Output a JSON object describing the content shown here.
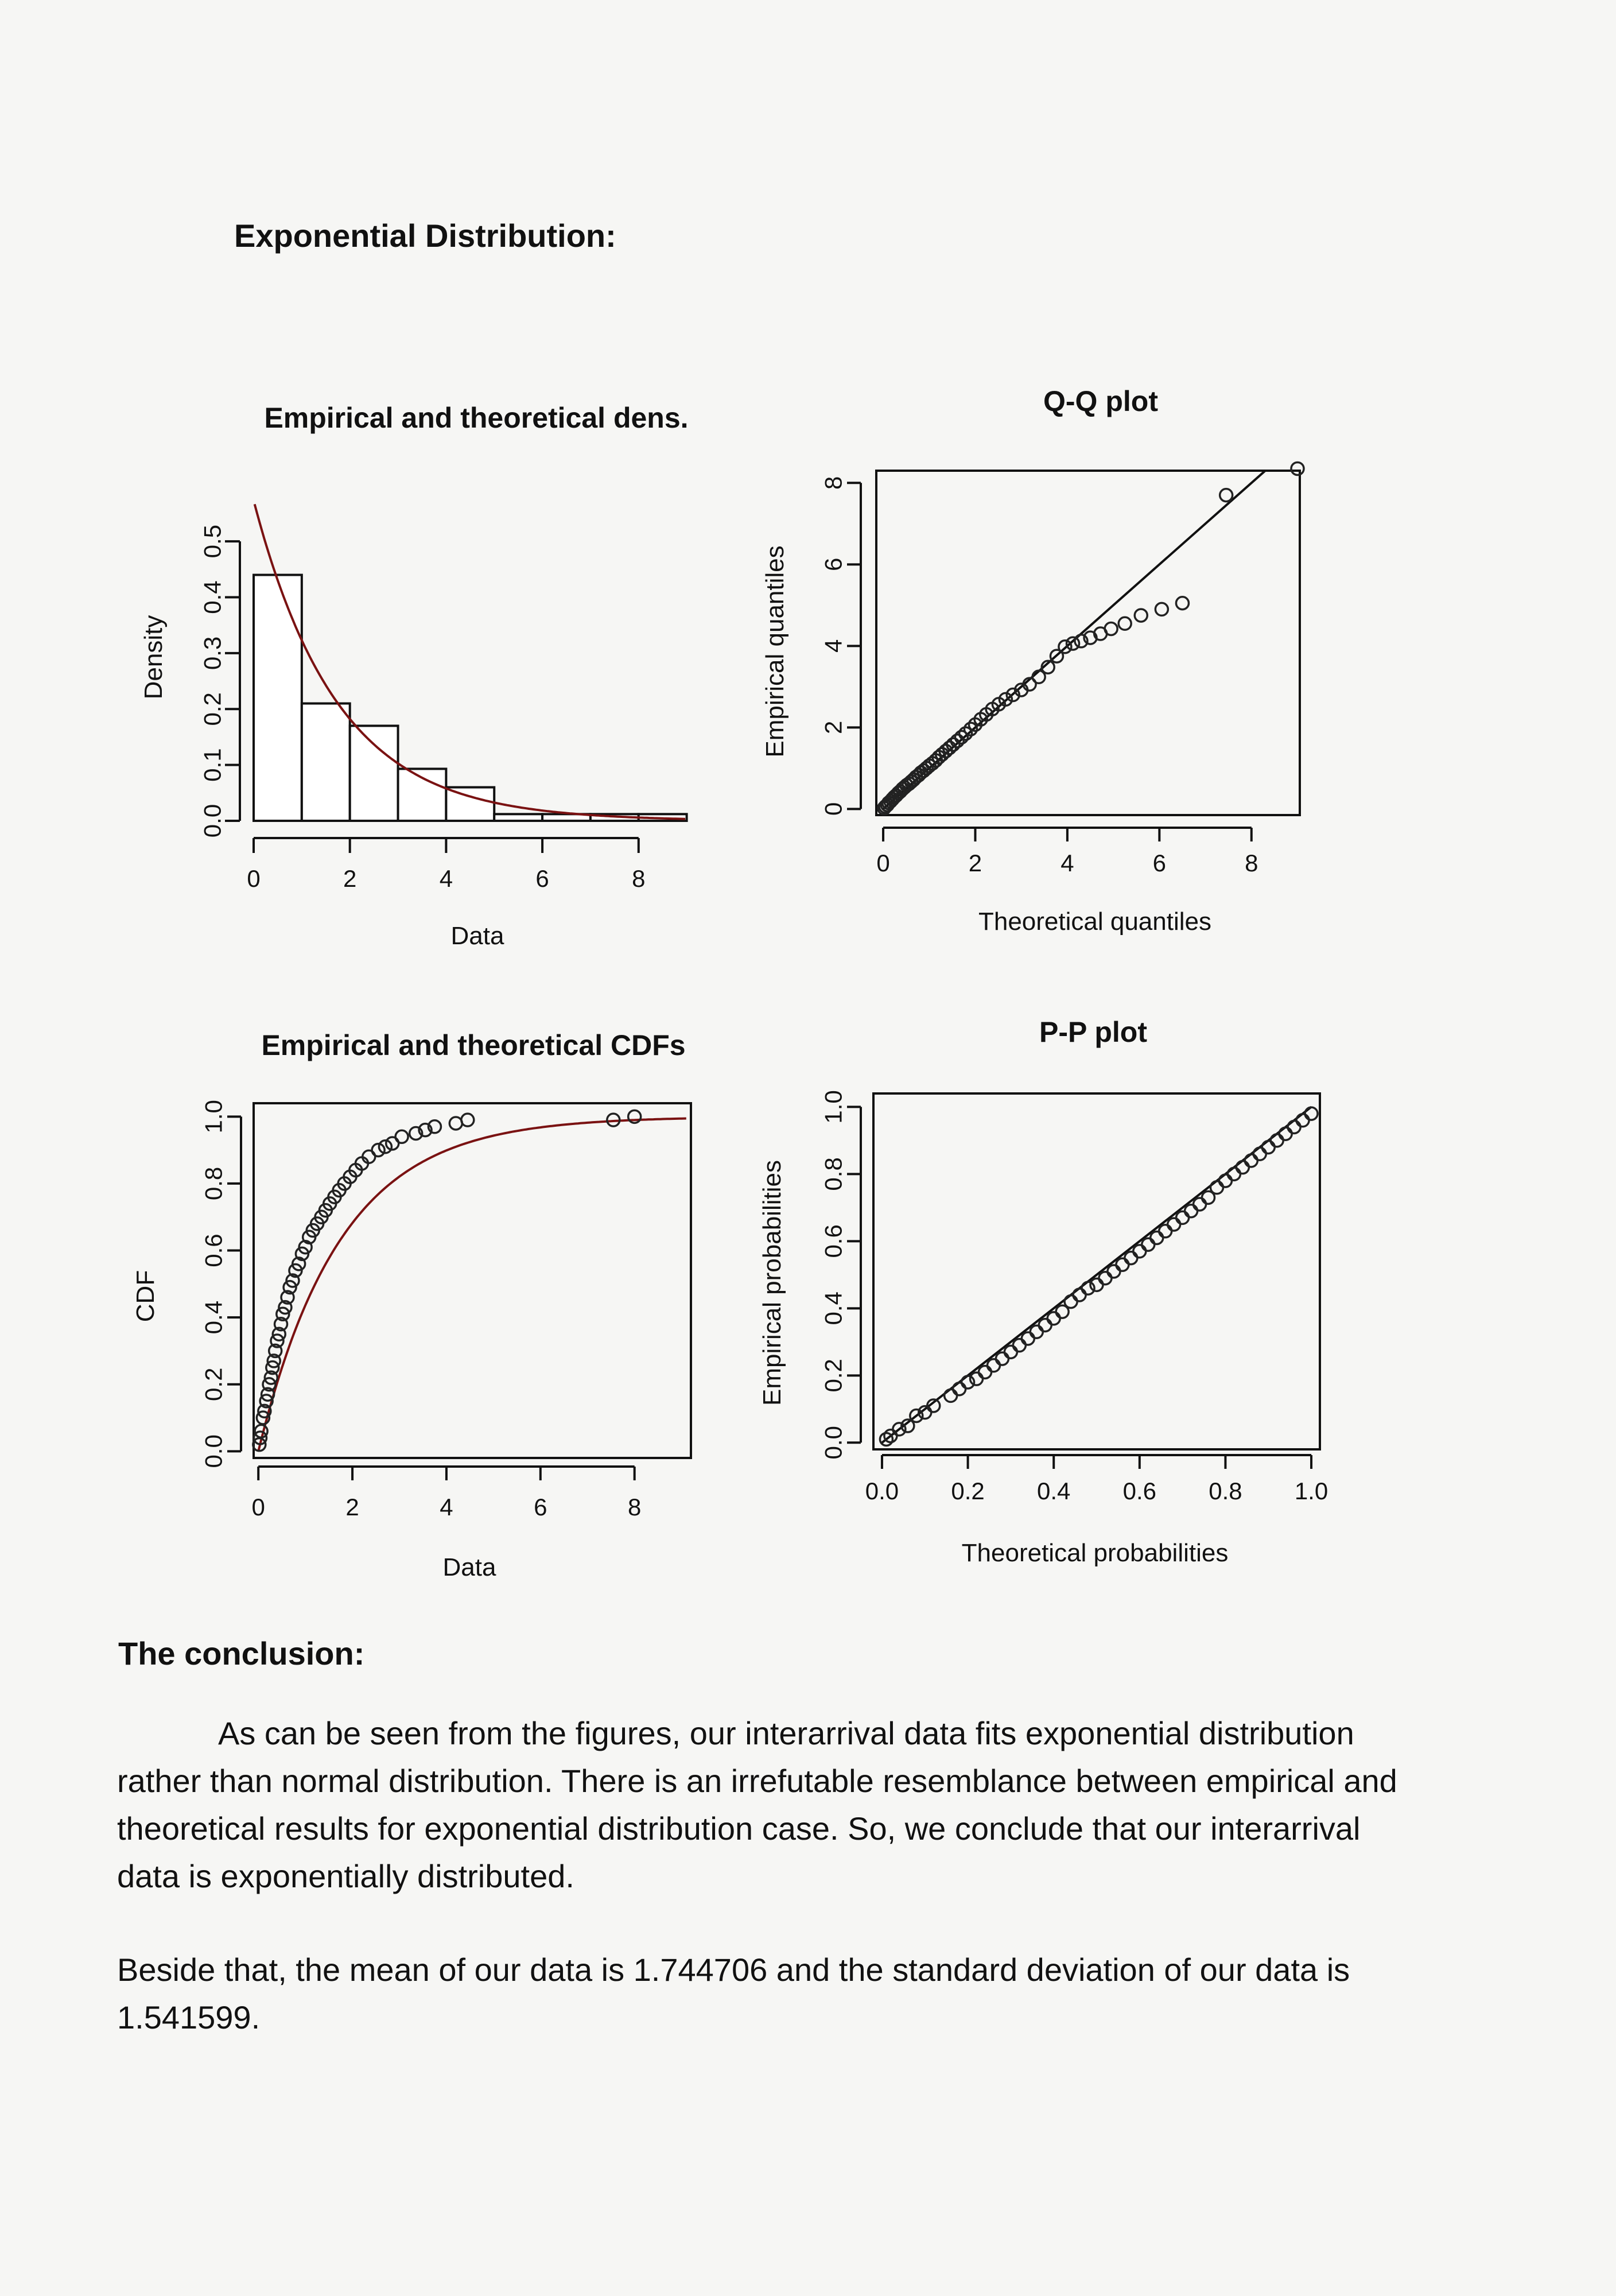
{
  "document": {
    "title": "Exponential Distribution:",
    "conclusion_heading": "The conclusion:",
    "conclusion_text": "As can be seen from the figures, our interarrival data fits exponential distribution rather than normal distribution. There is an irrefutable resemblance between empirical and theoretical results for exponential distribution case. So, we conclude that our interarrival data is exponentially distributed.",
    "stats_text": "Beside that, the mean of our data is 1.744706 and the standard deviation of our data is 1.541599."
  },
  "colors": {
    "theoretical_curve": "#7a1212",
    "points": "#222222"
  },
  "chart_data": [
    {
      "id": "density",
      "type": "bar",
      "title": "Empirical and theoretical dens.",
      "xlabel": "Data",
      "ylabel": "Density",
      "xlim": [
        0,
        9.1
      ],
      "ylim": [
        0,
        0.57
      ],
      "xticks": [
        "0",
        "2",
        "4",
        "6",
        "8"
      ],
      "yticks": [
        "0.0",
        "0.1",
        "0.2",
        "0.3",
        "0.4",
        "0.5"
      ],
      "bins": [
        {
          "start": 0,
          "end": 1,
          "value": 0.44
        },
        {
          "start": 1,
          "end": 2,
          "value": 0.21
        },
        {
          "start": 2,
          "end": 3,
          "value": 0.17
        },
        {
          "start": 3,
          "end": 4,
          "value": 0.093
        },
        {
          "start": 4,
          "end": 5,
          "value": 0.06
        },
        {
          "start": 5,
          "end": 6,
          "value": 0.012
        },
        {
          "start": 6,
          "end": 7,
          "value": 0.012
        },
        {
          "start": 7,
          "end": 8,
          "value": 0.012
        },
        {
          "start": 8,
          "end": 9,
          "value": 0.012
        }
      ],
      "theoretical_rate": 0.573
    },
    {
      "id": "qq",
      "type": "scatter",
      "title": "Q-Q plot",
      "xlabel": "Theoretical quantiles",
      "ylabel": "Empirical quantiles",
      "xlim": [
        -0.15,
        9.05
      ],
      "ylim": [
        -0.15,
        8.3
      ],
      "xticks": [
        "0",
        "2",
        "4",
        "6",
        "8"
      ],
      "yticks": [
        "0",
        "2",
        "4",
        "6",
        "8"
      ],
      "points": [
        [
          0.02,
          0.02
        ],
        [
          0.05,
          0.06
        ],
        [
          0.09,
          0.1
        ],
        [
          0.12,
          0.15
        ],
        [
          0.16,
          0.19
        ],
        [
          0.2,
          0.24
        ],
        [
          0.24,
          0.29
        ],
        [
          0.28,
          0.33
        ],
        [
          0.33,
          0.39
        ],
        [
          0.37,
          0.43
        ],
        [
          0.42,
          0.49
        ],
        [
          0.46,
          0.53
        ],
        [
          0.51,
          0.58
        ],
        [
          0.56,
          0.62
        ],
        [
          0.61,
          0.67
        ],
        [
          0.66,
          0.72
        ],
        [
          0.71,
          0.78
        ],
        [
          0.77,
          0.83
        ],
        [
          0.82,
          0.89
        ],
        [
          0.88,
          0.94
        ],
        [
          0.94,
          1.0
        ],
        [
          1.0,
          1.06
        ],
        [
          1.07,
          1.12
        ],
        [
          1.14,
          1.19
        ],
        [
          1.21,
          1.27
        ],
        [
          1.28,
          1.34
        ],
        [
          1.36,
          1.42
        ],
        [
          1.44,
          1.5
        ],
        [
          1.52,
          1.58
        ],
        [
          1.61,
          1.67
        ],
        [
          1.7,
          1.76
        ],
        [
          1.79,
          1.85
        ],
        [
          1.9,
          1.96
        ],
        [
          2.0,
          2.07
        ],
        [
          2.12,
          2.2
        ],
        [
          2.24,
          2.32
        ],
        [
          2.37,
          2.45
        ],
        [
          2.51,
          2.57
        ],
        [
          2.66,
          2.69
        ],
        [
          2.82,
          2.8
        ],
        [
          3.0,
          2.92
        ],
        [
          3.18,
          3.06
        ],
        [
          3.38,
          3.24
        ],
        [
          3.58,
          3.48
        ],
        [
          3.77,
          3.75
        ],
        [
          3.95,
          3.98
        ],
        [
          4.12,
          4.06
        ],
        [
          4.3,
          4.12
        ],
        [
          4.5,
          4.2
        ],
        [
          4.72,
          4.3
        ],
        [
          4.95,
          4.42
        ],
        [
          5.25,
          4.55
        ],
        [
          5.6,
          4.75
        ],
        [
          6.05,
          4.9
        ],
        [
          6.5,
          5.05
        ],
        [
          7.45,
          7.7
        ],
        [
          9.0,
          8.35
        ]
      ],
      "reference_line": [
        [
          0,
          0
        ],
        [
          8.3,
          8.3
        ]
      ]
    },
    {
      "id": "cdf",
      "type": "line",
      "title": "Empirical and theoretical CDFs",
      "xlabel": "Data",
      "ylabel": "CDF",
      "xlim": [
        -0.1,
        9.2
      ],
      "ylim": [
        -0.02,
        1.04
      ],
      "xticks": [
        "0",
        "2",
        "4",
        "6",
        "8"
      ],
      "yticks": [
        "0.0",
        "0.2",
        "0.4",
        "0.6",
        "0.8",
        "1.0"
      ],
      "points": [
        [
          0.02,
          0.02
        ],
        [
          0.04,
          0.04
        ],
        [
          0.06,
          0.06
        ],
        [
          0.1,
          0.1
        ],
        [
          0.13,
          0.12
        ],
        [
          0.17,
          0.15
        ],
        [
          0.2,
          0.17
        ],
        [
          0.23,
          0.2
        ],
        [
          0.27,
          0.22
        ],
        [
          0.3,
          0.25
        ],
        [
          0.33,
          0.27
        ],
        [
          0.36,
          0.3
        ],
        [
          0.4,
          0.33
        ],
        [
          0.44,
          0.35
        ],
        [
          0.48,
          0.38
        ],
        [
          0.52,
          0.41
        ],
        [
          0.57,
          0.43
        ],
        [
          0.62,
          0.46
        ],
        [
          0.67,
          0.49
        ],
        [
          0.73,
          0.51
        ],
        [
          0.79,
          0.54
        ],
        [
          0.86,
          0.56
        ],
        [
          0.93,
          0.59
        ],
        [
          1.0,
          0.61
        ],
        [
          1.08,
          0.64
        ],
        [
          1.16,
          0.66
        ],
        [
          1.25,
          0.68
        ],
        [
          1.34,
          0.7
        ],
        [
          1.43,
          0.72
        ],
        [
          1.52,
          0.74
        ],
        [
          1.62,
          0.76
        ],
        [
          1.72,
          0.78
        ],
        [
          1.83,
          0.8
        ],
        [
          1.95,
          0.82
        ],
        [
          2.07,
          0.84
        ],
        [
          2.2,
          0.86
        ],
        [
          2.35,
          0.88
        ],
        [
          2.55,
          0.9
        ],
        [
          2.7,
          0.91
        ],
        [
          2.85,
          0.92
        ],
        [
          3.05,
          0.94
        ],
        [
          3.35,
          0.95
        ],
        [
          3.55,
          0.96
        ],
        [
          3.75,
          0.97
        ],
        [
          4.2,
          0.98
        ],
        [
          4.45,
          0.99
        ],
        [
          7.55,
          0.99
        ],
        [
          8.0,
          1.0
        ]
      ],
      "theoretical_rate": 0.573
    },
    {
      "id": "pp",
      "type": "scatter",
      "title": "P-P plot",
      "xlabel": "Theoretical probabilities",
      "ylabel": "Empirical probabilities",
      "xlim": [
        -0.02,
        1.02
      ],
      "ylim": [
        -0.02,
        1.04
      ],
      "xticks": [
        "0.0",
        "0.2",
        "0.4",
        "0.6",
        "0.8",
        "1.0"
      ],
      "yticks": [
        "0.0",
        "0.2",
        "0.4",
        "0.6",
        "0.8",
        "1.0"
      ],
      "points": [
        [
          0.01,
          0.01
        ],
        [
          0.02,
          0.02
        ],
        [
          0.04,
          0.04
        ],
        [
          0.06,
          0.05
        ],
        [
          0.08,
          0.08
        ],
        [
          0.1,
          0.09
        ],
        [
          0.12,
          0.11
        ],
        [
          0.16,
          0.14
        ],
        [
          0.18,
          0.16
        ],
        [
          0.2,
          0.18
        ],
        [
          0.22,
          0.19
        ],
        [
          0.24,
          0.21
        ],
        [
          0.26,
          0.23
        ],
        [
          0.28,
          0.25
        ],
        [
          0.3,
          0.27
        ],
        [
          0.32,
          0.29
        ],
        [
          0.34,
          0.31
        ],
        [
          0.36,
          0.33
        ],
        [
          0.38,
          0.35
        ],
        [
          0.4,
          0.37
        ],
        [
          0.42,
          0.39
        ],
        [
          0.44,
          0.42
        ],
        [
          0.46,
          0.44
        ],
        [
          0.48,
          0.46
        ],
        [
          0.5,
          0.47
        ],
        [
          0.52,
          0.49
        ],
        [
          0.54,
          0.51
        ],
        [
          0.56,
          0.53
        ],
        [
          0.58,
          0.55
        ],
        [
          0.6,
          0.57
        ],
        [
          0.62,
          0.59
        ],
        [
          0.64,
          0.61
        ],
        [
          0.66,
          0.63
        ],
        [
          0.68,
          0.65
        ],
        [
          0.7,
          0.67
        ],
        [
          0.72,
          0.69
        ],
        [
          0.74,
          0.71
        ],
        [
          0.76,
          0.73
        ],
        [
          0.78,
          0.76
        ],
        [
          0.8,
          0.78
        ],
        [
          0.82,
          0.8
        ],
        [
          0.84,
          0.82
        ],
        [
          0.86,
          0.84
        ],
        [
          0.88,
          0.86
        ],
        [
          0.9,
          0.88
        ],
        [
          0.92,
          0.9
        ],
        [
          0.94,
          0.92
        ],
        [
          0.96,
          0.94
        ],
        [
          0.98,
          0.96
        ],
        [
          1.0,
          0.98
        ]
      ],
      "reference_line": [
        [
          0,
          0
        ],
        [
          1,
          1
        ]
      ]
    }
  ]
}
